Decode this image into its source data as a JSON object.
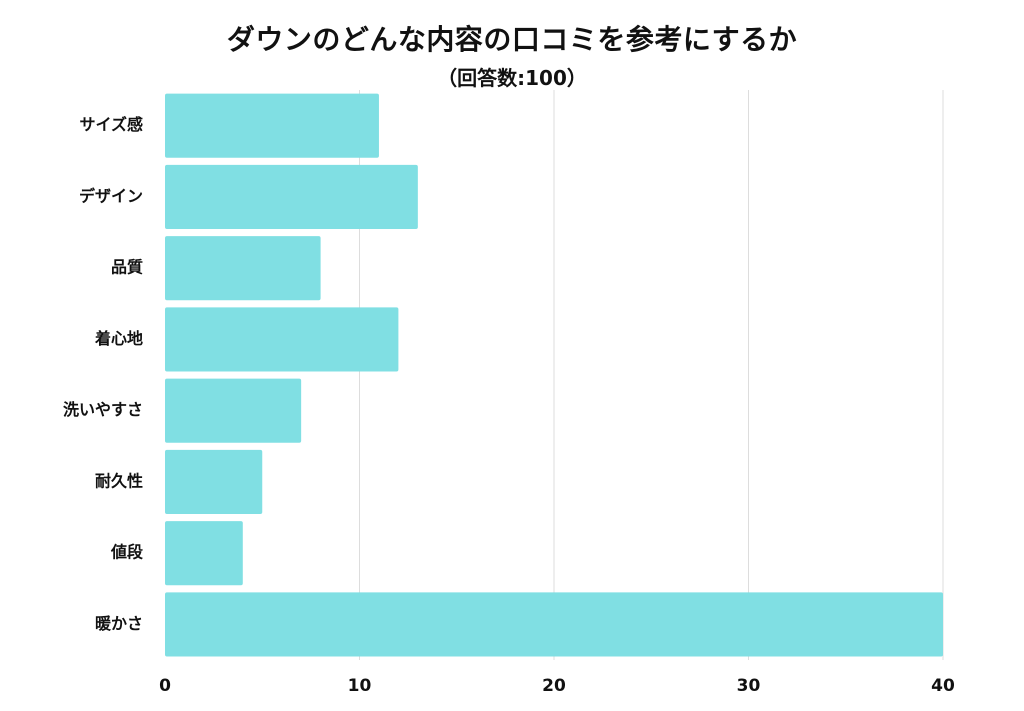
{
  "chart_data": {
    "type": "bar",
    "orientation": "horizontal",
    "title": "ダウンのどんな内容の口コミを参考にするか",
    "subtitle": "（回答数:100）",
    "categories": [
      "サイズ感",
      "デザイン",
      "品質",
      "着心地",
      "洗いやすさ",
      "耐久性",
      "値段",
      "暖かさ"
    ],
    "values": [
      11,
      13,
      8,
      12,
      7,
      5,
      4,
      40
    ],
    "xlim": [
      0,
      40
    ],
    "xticks": [
      "0",
      "10",
      "20",
      "30",
      "40"
    ],
    "grid": true,
    "bar_color": "#80dfe3",
    "grid_color": "#dddddd"
  }
}
